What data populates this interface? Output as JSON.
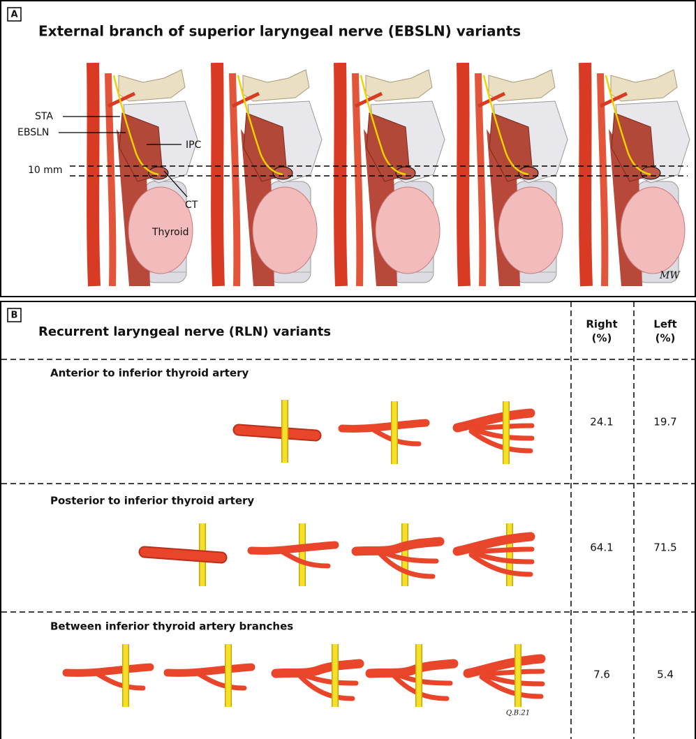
{
  "panel_a": {
    "label": "A",
    "title": "External branch of superior laryngeal nerve (EBSLN) variants",
    "annotations": {
      "sta": "STA",
      "ebsln": "EBSLN",
      "ipc": "IPC",
      "distance": "10 mm",
      "ct": "CT",
      "thyroid": "Thyroid"
    },
    "signature": "MW"
  },
  "panel_b": {
    "label": "B",
    "title": "Recurrent laryngeal nerve (RLN) variants",
    "columns": [
      {
        "name": "Right",
        "unit": "(%)"
      },
      {
        "name": "Left",
        "unit": "(%)"
      }
    ],
    "rows": [
      {
        "label": "Anterior to inferior thyroid artery",
        "right": 24.1,
        "left": 19.7
      },
      {
        "label": "Posterior to inferior thyroid artery",
        "right": 64.1,
        "left": 71.5
      },
      {
        "label": "Between inferior thyroid artery branches",
        "right": 7.6,
        "left": 5.4
      }
    ],
    "signature": "Q.B.21"
  }
}
